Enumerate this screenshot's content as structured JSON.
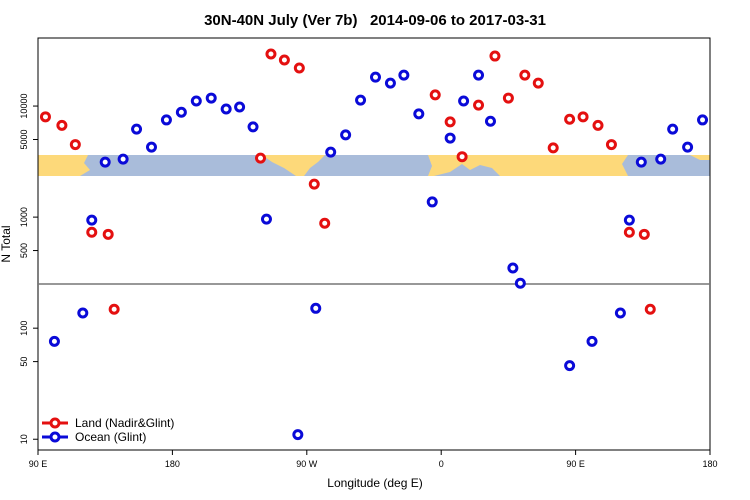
{
  "chart_data": {
    "type": "scatter",
    "title": "30N-40N July (Ver 7b)   2014-09-06 to 2017-03-31",
    "xlabel": "Longitude (deg E)",
    "ylabel": "N Total",
    "xlim": [
      90,
      540
    ],
    "ylim": [
      8,
      41000
    ],
    "log_y": true,
    "xticks": [
      {
        "value": 90,
        "label": "90 E"
      },
      {
        "value": 180,
        "label": "180"
      },
      {
        "value": 270,
        "label": "90 W"
      },
      {
        "value": 360,
        "label": "0"
      },
      {
        "value": 450,
        "label": "90 E"
      },
      {
        "value": 540,
        "label": "180"
      }
    ],
    "yticks": [
      10,
      50,
      100,
      500,
      1000,
      5000,
      10000
    ],
    "reference_line": 250,
    "legend": "bottom-left",
    "series": [
      {
        "name": "Land (Nadir&Glint)",
        "color": "#e41010",
        "x": [
          95,
          106,
          115,
          126,
          137,
          141,
          239,
          246,
          255,
          265,
          275,
          282,
          356,
          366,
          374,
          385,
          396,
          405,
          416,
          425,
          435,
          446,
          455,
          465,
          474,
          486,
          496,
          500
        ],
        "values": [
          8000,
          6700,
          4500,
          730,
          700,
          148,
          3400,
          29400,
          26000,
          22000,
          1980,
          880,
          12600,
          7200,
          3500,
          10200,
          28200,
          11800,
          19000,
          16100,
          4200,
          7600,
          8000,
          6700,
          4500,
          730,
          700,
          148
        ]
      },
      {
        "name": "Ocean (Glint)",
        "color": "#0a0ad8",
        "x": [
          101,
          120,
          126,
          135,
          147,
          156,
          166,
          176,
          186,
          196,
          206,
          216,
          225,
          234,
          243,
          264,
          276,
          286,
          296,
          306,
          316,
          326,
          335,
          345,
          354,
          366,
          375,
          385,
          393,
          408,
          413,
          446,
          461,
          480,
          486,
          494,
          507,
          515,
          525,
          535
        ],
        "values": [
          76,
          137,
          940,
          3130,
          3330,
          6200,
          4270,
          7500,
          8800,
          11100,
          11800,
          9400,
          9800,
          6500,
          960,
          11,
          151,
          3850,
          5500,
          11300,
          18200,
          16100,
          19000,
          8500,
          1370,
          5150,
          11100,
          19000,
          7300,
          348,
          254,
          46,
          76,
          137,
          940,
          3130,
          3330,
          6200,
          4270,
          7500
        ]
      }
    ]
  }
}
